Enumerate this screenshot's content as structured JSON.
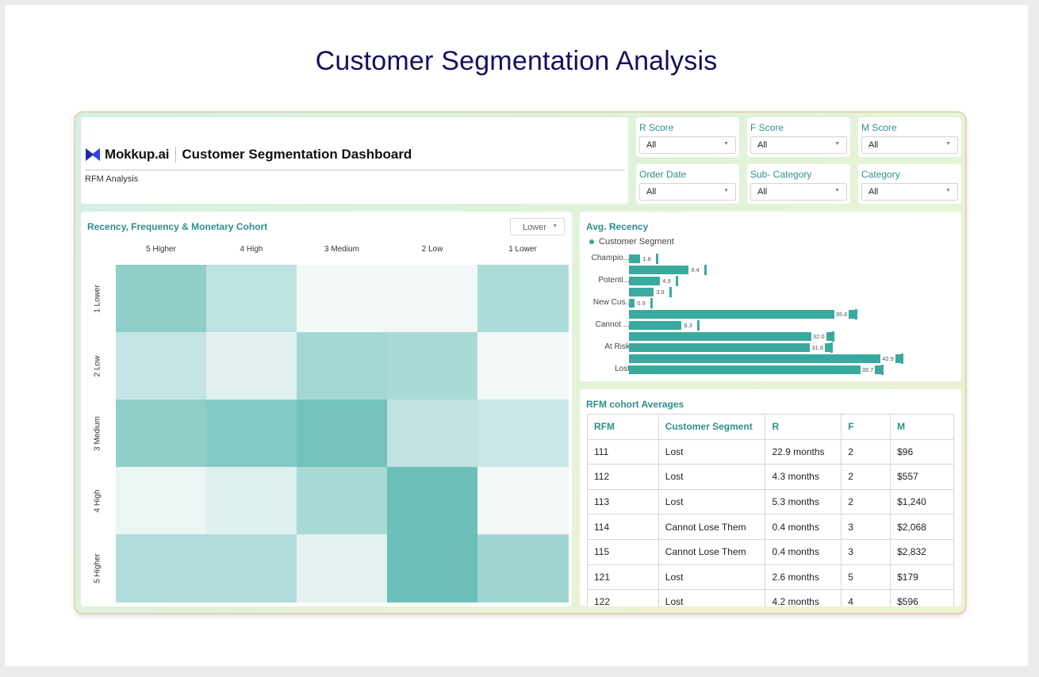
{
  "page": {
    "title": "Customer Segmentation Analysis"
  },
  "colors": {
    "accent": "#2e8f89",
    "bar": "#3aaa9e",
    "title": "#14105e"
  },
  "header": {
    "logo_text": "Mokkup.ai",
    "dashboard_title": "Customer Segmentation Dashboard",
    "subtitle": "RFM Analysis"
  },
  "filters": [
    {
      "label": "R Score",
      "value": "All"
    },
    {
      "label": "F Score",
      "value": "All"
    },
    {
      "label": "M Score",
      "value": "All"
    },
    {
      "label": "Order Date",
      "value": "All"
    },
    {
      "label": "Sub- Category",
      "value": "All"
    },
    {
      "label": "Category",
      "value": "All"
    }
  ],
  "heatmap": {
    "title": "Recency, Frequency & Monetary Cohort",
    "dropdown": "Lower",
    "columns": [
      "5 Higher",
      "4 High",
      "3 Medium",
      "2 Low",
      "1 Lower"
    ],
    "rows": [
      "1 Lower",
      "2 Low",
      "3 Medium",
      "4 High",
      "5 Higher"
    ],
    "intensity": [
      [
        0.72,
        0.38,
        0.0,
        0.0,
        0.5
      ],
      [
        0.33,
        0.12,
        0.57,
        0.52,
        0.0
      ],
      [
        0.72,
        0.8,
        0.92,
        0.36,
        0.3
      ],
      [
        0.06,
        0.15,
        0.52,
        0.97,
        0.0
      ],
      [
        0.48,
        0.48,
        0.1,
        0.97,
        0.6
      ]
    ]
  },
  "chart_data": {
    "type": "bar",
    "title": "Avg. Recency",
    "legend": "Customer Segment",
    "categories": [
      "Champio...",
      "",
      "Potenti...",
      "",
      "New Cus..",
      "",
      "Cannot ...",
      "",
      "At Risk",
      "",
      "Lost"
    ],
    "values": [
      1.8,
      9.4,
      4.9,
      3.9,
      0.9,
      35.6,
      8.3,
      32.0,
      31.8,
      42.9,
      39.7
    ],
    "value_labels": [
      "1.8",
      "9.4",
      "4.9",
      "3.9",
      "0.9",
      "35.6",
      "8.3",
      "32.0",
      "31.8",
      "42.9",
      "39.7"
    ],
    "xlim": [
      0,
      45
    ],
    "orientation": "horizontal"
  },
  "cohort_table": {
    "title": "RFM cohort Averages",
    "headers": [
      "RFM",
      "Customer Segment",
      "R",
      "F",
      "M"
    ],
    "rows": [
      [
        "111",
        "Lost",
        "22.9 months",
        "2",
        "$96"
      ],
      [
        "112",
        "Lost",
        "4.3 months",
        "2",
        "$557"
      ],
      [
        "113",
        "Lost",
        "5.3 months",
        "2",
        "$1,240"
      ],
      [
        "114",
        "Cannot Lose Them",
        "0.4 months",
        "3",
        "$2,068"
      ],
      [
        "115",
        "Cannot Lose Them",
        "0.4 months",
        "3",
        "$2,832"
      ],
      [
        "121",
        "Lost",
        "2.6 months",
        "5",
        "$179"
      ],
      [
        "122",
        "Lost",
        "4.2 months",
        "4",
        "$596"
      ]
    ]
  }
}
